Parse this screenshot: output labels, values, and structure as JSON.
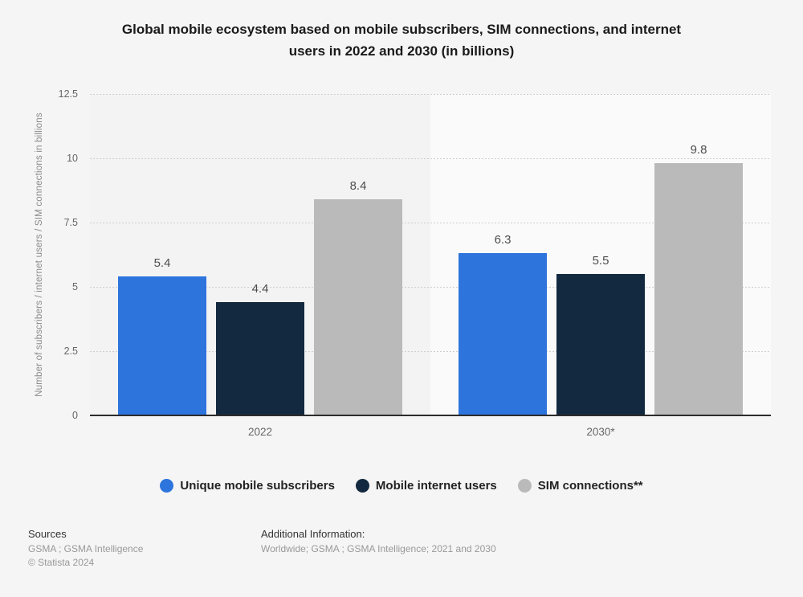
{
  "header": {
    "title_line1": "Global mobile ecosystem based on mobile subscribers, SIM connections, and internet",
    "title_line2": "users in 2022 and 2030 (in billions)"
  },
  "chart_data": {
    "type": "bar",
    "title": "Global mobile ecosystem based on mobile subscribers, SIM connections, and internet users in 2022 and 2030 (in billions)",
    "categories": [
      "2022",
      "2030*"
    ],
    "series": [
      {
        "name": "Unique mobile subscribers",
        "color": "#2d74dd",
        "values": [
          5.4,
          6.3
        ]
      },
      {
        "name": "Mobile internet users",
        "color": "#13293f",
        "values": [
          4.4,
          5.5
        ]
      },
      {
        "name": "SIM connections**",
        "color": "#bababa",
        "values": [
          8.4,
          9.8
        ]
      }
    ],
    "xlabel": "",
    "ylabel": "Number of subscribers / internet users / SIM connections in billions",
    "ylim": [
      0,
      12.5
    ],
    "yticks": [
      "0",
      "2.5",
      "5",
      "7.5",
      "10",
      "12.5"
    ],
    "grid": "dotted-horizontal",
    "legend_position": "bottom",
    "band_colors": [
      "#f3f3f3",
      "#fafafa"
    ],
    "value_labels": [
      [
        5.4,
        6.3
      ],
      [
        4.4,
        5.5
      ],
      [
        8.4,
        9.8
      ]
    ]
  },
  "footer": {
    "sources_label": "Sources",
    "sources_line": "GSMA ; GSMA Intelligence",
    "copyright": "© Statista 2024",
    "additional_label": "Additional Information:",
    "additional_line": "Worldwide; GSMA ; GSMA Intelligence; 2021 and 2030"
  },
  "colors": {
    "background": "#f5f5f5",
    "gridline": "#cfcfcf",
    "axis_line": "#2c2c2c",
    "tick_text": "#666666",
    "value_label_text": "#4d4d4d",
    "title_text": "#1a1a1a",
    "footer_muted": "#999999"
  }
}
